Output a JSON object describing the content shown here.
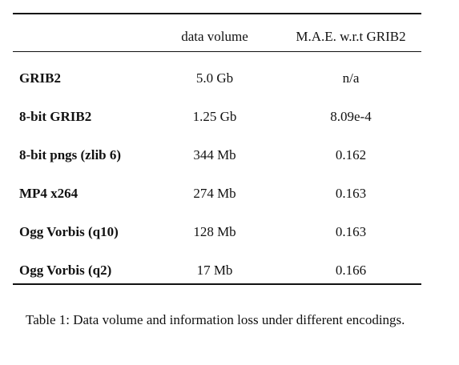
{
  "table": {
    "headers": [
      "",
      "data volume",
      "M.A.E. w.r.t GRIB2"
    ],
    "rows": [
      {
        "name": "GRIB2",
        "volume": "5.0 Gb",
        "mae": "n/a"
      },
      {
        "name": "8-bit GRIB2",
        "volume": "1.25 Gb",
        "mae": "8.09e-4"
      },
      {
        "name": "8-bit pngs (zlib 6)",
        "volume": "344 Mb",
        "mae": "0.162"
      },
      {
        "name": "MP4 x264",
        "volume": "274 Mb",
        "mae": "0.163"
      },
      {
        "name": "Ogg Vorbis (q10)",
        "volume": "128 Mb",
        "mae": "0.163"
      },
      {
        "name": "Ogg Vorbis (q2)",
        "volume": "17 Mb",
        "mae": "0.166"
      }
    ]
  },
  "caption": "Table 1: Data volume and information loss under different encodings."
}
